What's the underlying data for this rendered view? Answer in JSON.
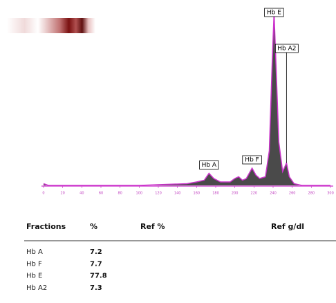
{
  "chart_data": {
    "type": "area",
    "x": [
      0,
      5,
      100,
      150,
      160,
      168,
      173,
      178,
      185,
      195,
      200,
      204,
      208,
      212,
      218,
      222,
      226,
      232,
      236,
      239,
      241,
      243,
      246,
      250,
      254,
      257,
      262,
      270,
      300
    ],
    "values": [
      1,
      0,
      0,
      1,
      2,
      3,
      7,
      4,
      2,
      2,
      4,
      5,
      3,
      4,
      10,
      6,
      4,
      5,
      20,
      70,
      100,
      70,
      25,
      8,
      13,
      5,
      1,
      0,
      0
    ],
    "color": "#cc33cc",
    "fill": "#2a2a2a",
    "xlim": [
      0,
      300
    ],
    "ylim": [
      0,
      100
    ],
    "xticks": [
      0,
      20,
      40,
      60,
      80,
      100,
      120,
      140,
      160,
      180,
      200,
      220,
      240,
      260,
      280,
      300
    ],
    "annotations": [
      {
        "label": "Hb A",
        "x": 173
      },
      {
        "label": "Hb F",
        "x": 218
      },
      {
        "label": "Hb E",
        "x": 241
      },
      {
        "label": "Hb A2",
        "x": 254
      }
    ]
  },
  "table": {
    "header": [
      "Fractions",
      "%",
      "Ref %",
      "Ref g/dl"
    ],
    "rows": [
      [
        "Hb A",
        7.2
      ],
      [
        "Hb F",
        7.7
      ],
      [
        "Hb E",
        77.8
      ],
      [
        "Hb A2",
        7.3
      ]
    ]
  }
}
